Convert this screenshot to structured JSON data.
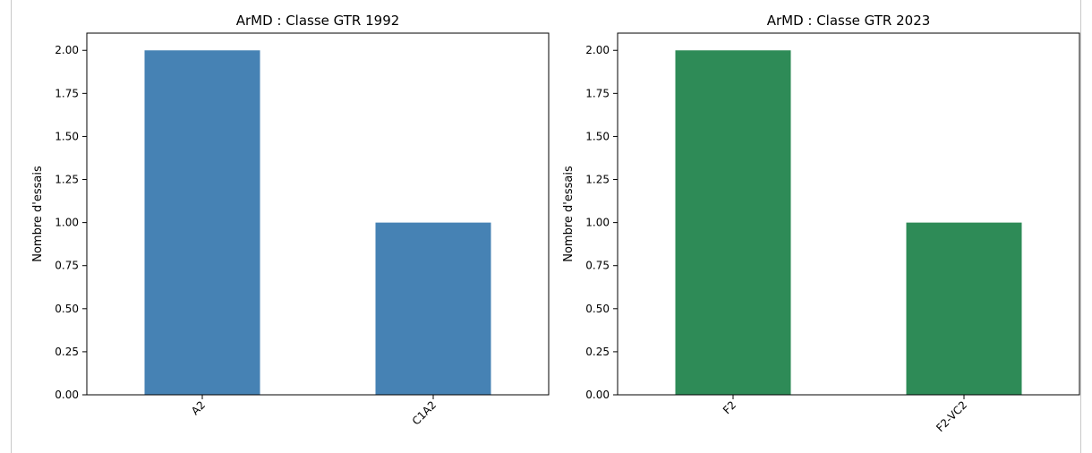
{
  "chart_data": [
    {
      "type": "bar",
      "title": "ArMD : Classe GTR 1992",
      "xlabel": "",
      "ylabel": "Nombre d'essais",
      "categories": [
        "A2",
        "C1A2"
      ],
      "values": [
        2,
        1
      ],
      "ylim": [
        0,
        2.1
      ],
      "yticks": [
        "0.00",
        "0.25",
        "0.50",
        "0.75",
        "1.00",
        "1.25",
        "1.50",
        "1.75",
        "2.00"
      ],
      "color": "#4682b4",
      "grid": false
    },
    {
      "type": "bar",
      "title": "ArMD : Classe GTR 2023",
      "xlabel": "",
      "ylabel": "Nombre d'essais",
      "categories": [
        "F2",
        "F2-VC2"
      ],
      "values": [
        2,
        1
      ],
      "ylim": [
        0,
        2.1
      ],
      "yticks": [
        "0.00",
        "0.25",
        "0.50",
        "0.75",
        "1.00",
        "1.25",
        "1.50",
        "1.75",
        "2.00"
      ],
      "color": "#2e8b57",
      "grid": false
    }
  ]
}
